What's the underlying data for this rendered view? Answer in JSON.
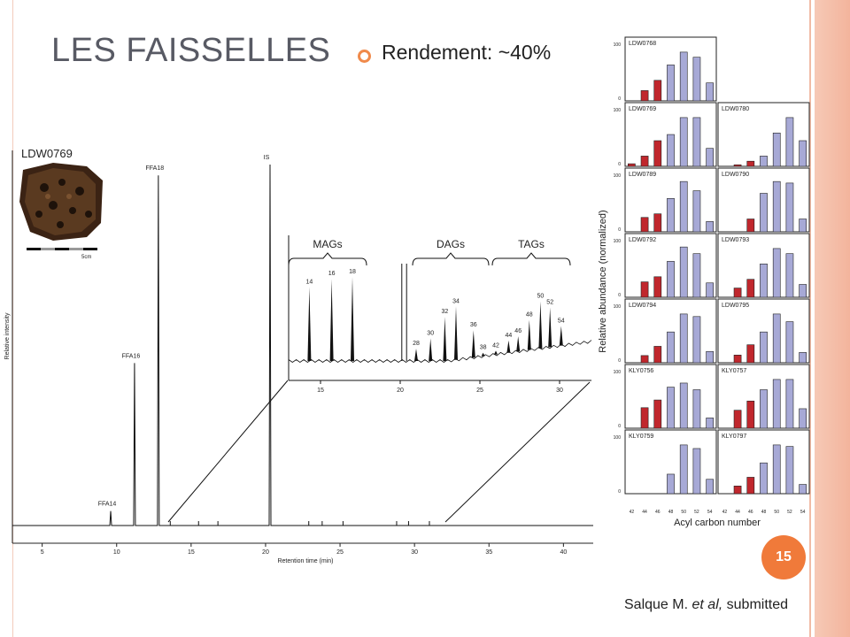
{
  "slide": {
    "title": "LES FAISSELLES",
    "yield_text": "Rendement: ~40%",
    "sample_label": "LDW0769",
    "scale_label": "5cm",
    "page_number": "15",
    "citation_author": "Salque M.",
    "citation_etal": "et al,",
    "citation_status": "submitted",
    "colors": {
      "accent": "#f07a3a",
      "title": "#585a64",
      "sidebar": "#f3b49c",
      "bar_red": "#c0272d",
      "bar_blue": "#a7a9d6"
    }
  },
  "chart_data": [
    {
      "type": "line",
      "name": "chromatogram",
      "xlabel": "Retention time (min)",
      "ylabel": "Relative intensity",
      "xlim": [
        3,
        42
      ],
      "xticks": [
        "5",
        "10",
        "15",
        "20",
        "25",
        "30",
        "35",
        "40"
      ],
      "peaks": [
        {
          "x": 9.6,
          "h": 0.04,
          "label": "FFA14"
        },
        {
          "x": 11.2,
          "h": 0.45,
          "label": "FFA16"
        },
        {
          "x": 12.8,
          "h": 0.97,
          "label": "FFA18"
        },
        {
          "x": 20.3,
          "h": 1.0,
          "label": "IS"
        }
      ],
      "inset": {
        "xlim": [
          13,
          32
        ],
        "xticks": [
          "15",
          "20",
          "25",
          "30"
        ],
        "groups": [
          "MAGs",
          "DAGs",
          "TAGs"
        ],
        "peaks": [
          {
            "x": 14.3,
            "h": 0.72,
            "label": "14"
          },
          {
            "x": 15.7,
            "h": 0.8,
            "label": "16"
          },
          {
            "x": 17.0,
            "h": 0.82,
            "label": "18"
          },
          {
            "x": 21.0,
            "h": 0.12,
            "label": "28"
          },
          {
            "x": 21.9,
            "h": 0.22,
            "label": "30"
          },
          {
            "x": 22.8,
            "h": 0.43,
            "label": "32"
          },
          {
            "x": 23.5,
            "h": 0.53,
            "label": "34"
          },
          {
            "x": 24.6,
            "h": 0.3,
            "label": "36"
          },
          {
            "x": 25.2,
            "h": 0.08,
            "label": "38"
          },
          {
            "x": 26.0,
            "h": 0.1,
            "label": "42"
          },
          {
            "x": 26.8,
            "h": 0.2,
            "label": "44"
          },
          {
            "x": 27.4,
            "h": 0.24,
            "label": "46"
          },
          {
            "x": 28.1,
            "h": 0.4,
            "label": "48"
          },
          {
            "x": 28.8,
            "h": 0.58,
            "label": "50"
          },
          {
            "x": 29.4,
            "h": 0.52,
            "label": "52"
          },
          {
            "x": 30.1,
            "h": 0.34,
            "label": "54"
          }
        ]
      }
    },
    {
      "type": "bar",
      "name": "acyl-carbon-panels",
      "xlabel": "Acyl carbon number",
      "ylabel": "Relative abundance (normalized)",
      "categories": [
        "42",
        "44",
        "46",
        "48",
        "50",
        "52",
        "54"
      ],
      "ylim": [
        0,
        100
      ],
      "ytick_labels": [
        "0",
        "100"
      ],
      "panels": [
        {
          "label": "LDW0768",
          "values": [
            0,
            20,
            40,
            70,
            95,
            85,
            35
          ]
        },
        {
          "label": "LDW0769",
          "values": [
            5,
            20,
            50,
            62,
            95,
            95,
            35
          ]
        },
        {
          "label": "LDW0780",
          "values": [
            0,
            3,
            10,
            20,
            65,
            95,
            50
          ]
        },
        {
          "label": "LDW0789",
          "values": [
            0,
            28,
            35,
            65,
            98,
            80,
            20
          ]
        },
        {
          "label": "LDW0790",
          "values": [
            0,
            0,
            25,
            75,
            98,
            95,
            25
          ]
        },
        {
          "label": "LDW0792",
          "values": [
            0,
            30,
            40,
            70,
            98,
            85,
            28
          ]
        },
        {
          "label": "LDW0793",
          "values": [
            0,
            18,
            35,
            65,
            95,
            85,
            25
          ]
        },
        {
          "label": "LDW0794",
          "values": [
            0,
            14,
            32,
            60,
            95,
            90,
            22
          ]
        },
        {
          "label": "LDW0795",
          "values": [
            0,
            15,
            35,
            60,
            95,
            80,
            20
          ]
        },
        {
          "label": "KLY0756",
          "values": [
            0,
            40,
            55,
            80,
            88,
            75,
            20
          ]
        },
        {
          "label": "KLY0757",
          "values": [
            0,
            35,
            53,
            75,
            95,
            95,
            38
          ]
        },
        {
          "label": "KLY0759",
          "values": [
            0,
            0,
            0,
            38,
            95,
            88,
            28
          ]
        },
        {
          "label": "KLY0797",
          "values": [
            0,
            15,
            32,
            60,
            95,
            92,
            18
          ]
        }
      ]
    }
  ]
}
